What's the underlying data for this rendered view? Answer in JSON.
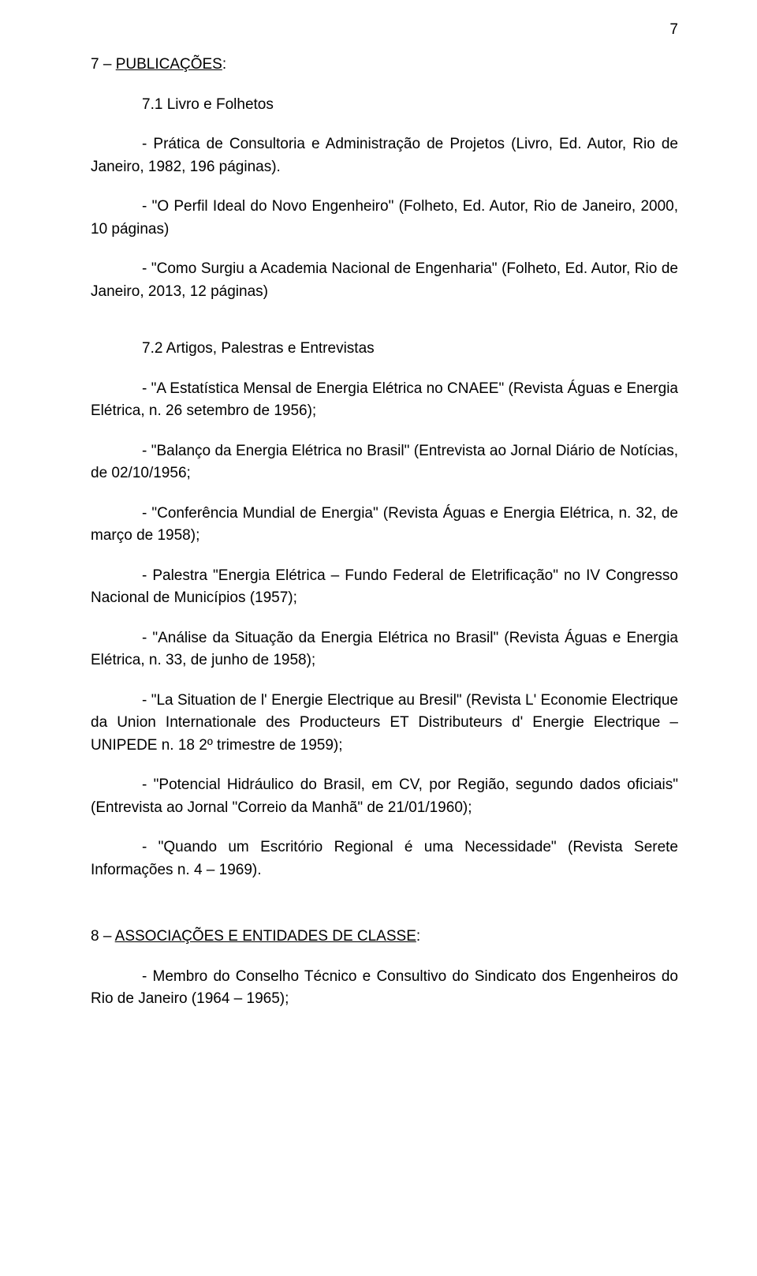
{
  "page_number": "7",
  "sec7": {
    "num": "7 – ",
    "title": "PUBLICAÇÕES",
    "colon": ":",
    "sub71": "7.1 Livro e Folhetos",
    "p1": "- Prática de Consultoria e Administração de Projetos (Livro, Ed. Autor, Rio de Janeiro, 1982, 196 páginas).",
    "p2": "- \"O Perfil Ideal do Novo Engenheiro\" (Folheto, Ed. Autor, Rio de Janeiro, 2000, 10 páginas)",
    "p3": "- \"Como Surgiu a Academia Nacional de Engenharia\" (Folheto, Ed. Autor, Rio de Janeiro, 2013, 12 páginas)",
    "sub72": "7.2 Artigos, Palestras e Entrevistas",
    "a1": "- \"A Estatística Mensal de Energia Elétrica no CNAEE\" (Revista Águas e Energia Elétrica, n. 26 setembro de 1956);",
    "a2": "- \"Balanço da Energia Elétrica no Brasil\" (Entrevista ao Jornal Diário de Notícias, de 02/10/1956;",
    "a3": "- \"Conferência Mundial de Energia\" (Revista Águas e Energia Elétrica, n. 32, de março de 1958);",
    "a4": "- Palestra \"Energia Elétrica – Fundo Federal de Eletrificação\" no IV Congresso Nacional de Municípios (1957);",
    "a5": "- \"Análise da Situação da Energia Elétrica no Brasil\" (Revista Águas e Energia Elétrica, n. 33, de junho de 1958);",
    "a6": "- \"La Situation de l' Energie Electrique au Bresil\" (Revista L' Economie Electrique da Union Internationale des Producteurs ET Distributeurs d' Energie Electrique – UNIPEDE n. 18 2º trimestre de 1959);",
    "a7": "- \"Potencial Hidráulico do Brasil, em CV, por Região, segundo dados oficiais\" (Entrevista ao Jornal \"Correio da Manhã\" de 21/01/1960);",
    "a8": "- \"Quando um Escritório Regional é uma Necessidade\" (Revista Serete Informações n. 4 – 1969)."
  },
  "sec8": {
    "num": "8 – ",
    "title": "ASSOCIAÇÕES E ENTIDADES DE CLASSE",
    "colon": ":",
    "p1": "- Membro do Conselho Técnico e Consultivo do Sindicato dos Engenheiros do Rio de Janeiro (1964 – 1965);"
  }
}
